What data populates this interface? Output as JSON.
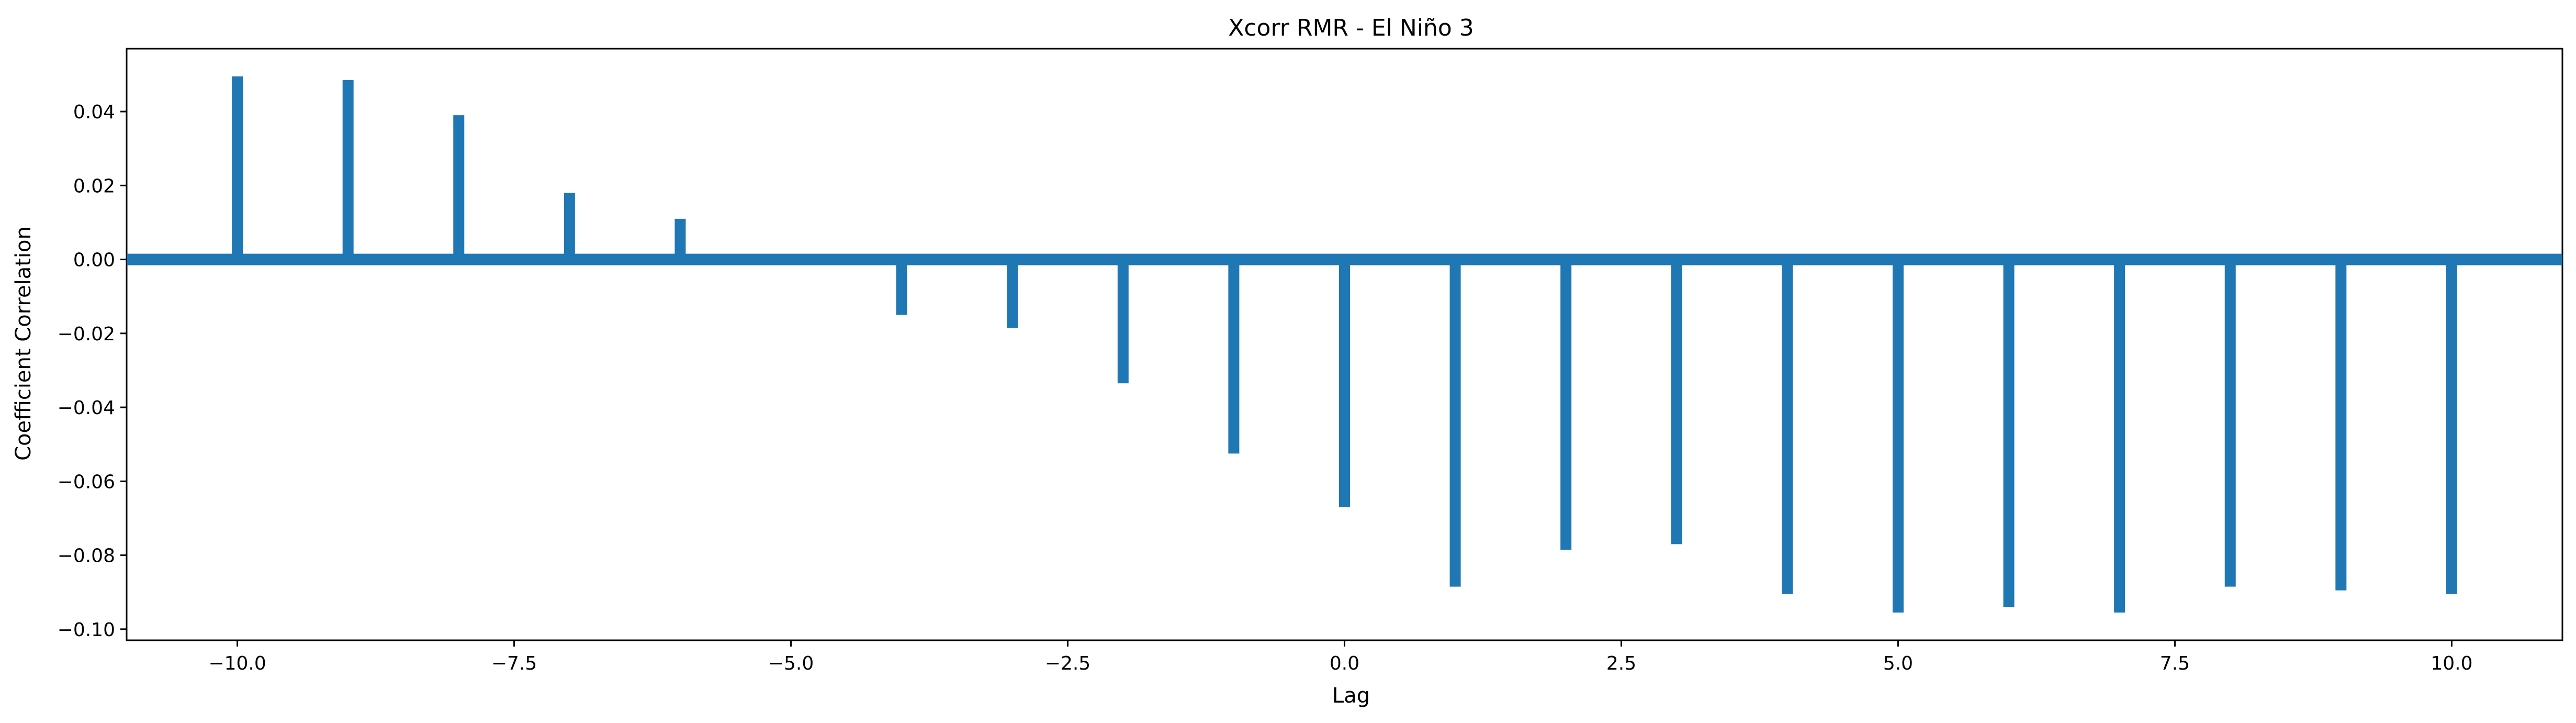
{
  "chart_data": {
    "type": "bar",
    "title": "Xcorr RMR - El Niño 3",
    "xlabel": "Lag",
    "ylabel": "Coefficient Correlation",
    "xlim": [
      -11,
      11
    ],
    "ylim": [
      -0.103,
      0.057
    ],
    "grid": false,
    "x": [
      -10,
      -9,
      -8,
      -7,
      -6,
      -5,
      -4,
      -3,
      -2,
      -1,
      0,
      1,
      2,
      3,
      4,
      5,
      6,
      7,
      8,
      9,
      10
    ],
    "values": [
      0.0495,
      0.0485,
      0.039,
      0.018,
      0.011,
      0.0,
      -0.015,
      -0.0185,
      -0.0335,
      -0.0525,
      -0.067,
      -0.0885,
      -0.0785,
      -0.077,
      -0.0905,
      -0.0955,
      -0.094,
      -0.0955,
      -0.0885,
      -0.0895,
      -0.0905
    ],
    "zero_line": true,
    "color": "#1f77b4",
    "x_ticks": [
      "−10.0",
      "−7.5",
      "−5.0",
      "−2.5",
      "0.0",
      "2.5",
      "5.0",
      "7.5",
      "10.0"
    ],
    "x_tick_values": [
      -10,
      -7.5,
      -5,
      -2.5,
      0,
      2.5,
      5,
      7.5,
      10
    ],
    "y_ticks": [
      "−0.10",
      "−0.08",
      "−0.06",
      "−0.04",
      "−0.02",
      "0.00",
      "0.02",
      "0.04"
    ],
    "y_tick_values": [
      -0.1,
      -0.08,
      -0.06,
      -0.04,
      -0.02,
      0.0,
      0.02,
      0.04
    ]
  }
}
